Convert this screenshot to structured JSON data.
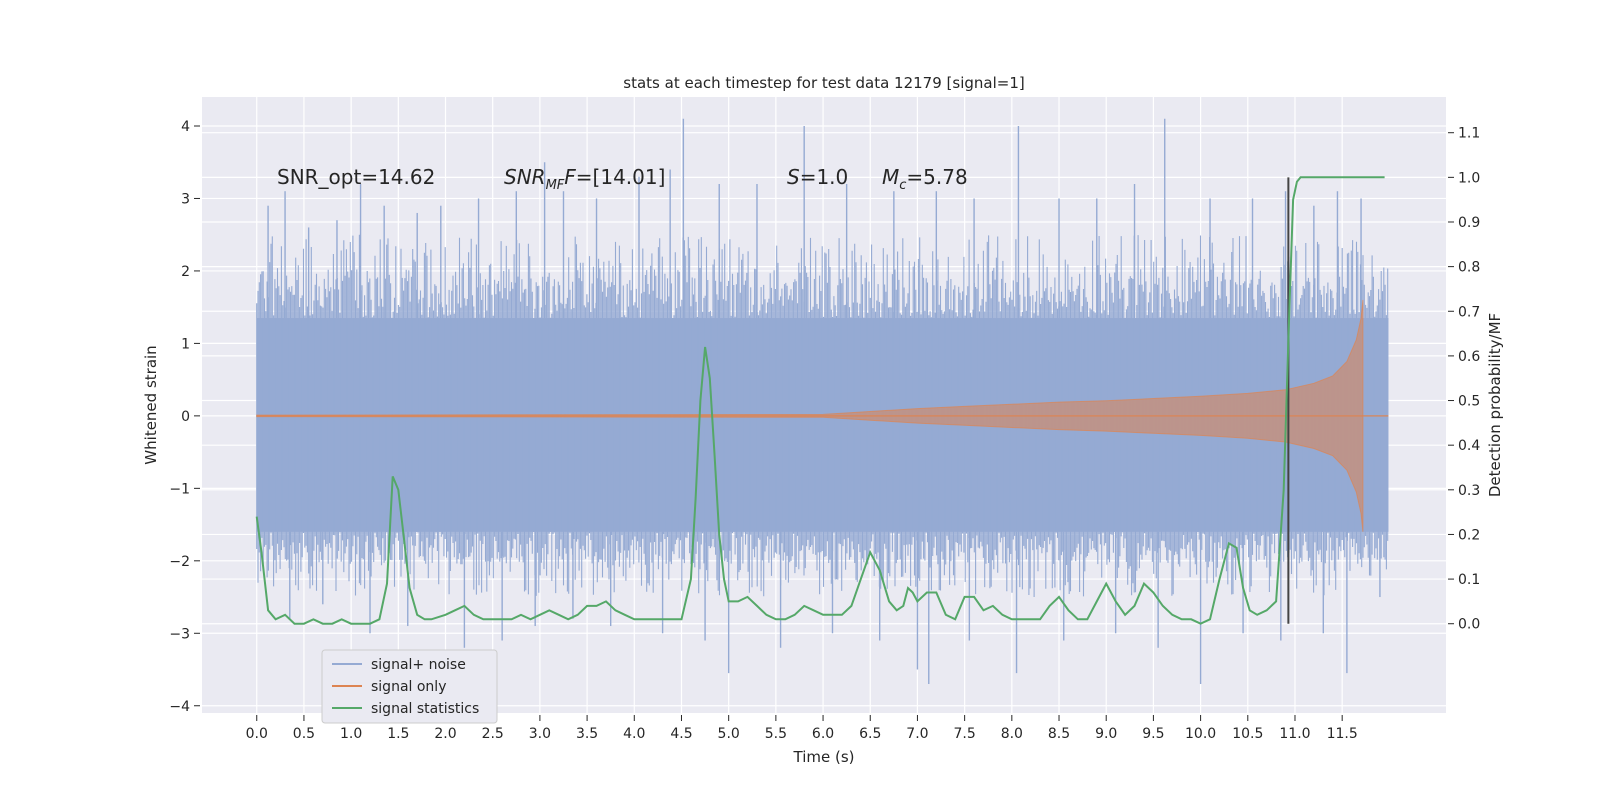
{
  "chart_data": {
    "type": "line",
    "title": "stats at each timestep for test data 12179 [signal=1]",
    "xlabel": "Time (s)",
    "ylabel": "Whitened strain",
    "ylabel_right": "Detection probability/MF",
    "xlim": [
      -0.58,
      12.6
    ],
    "ylim": [
      -4.1,
      4.4
    ],
    "ylim_right": [
      -0.2,
      1.18
    ],
    "x_ticks": [
      0.0,
      0.5,
      1.0,
      1.5,
      2.0,
      2.5,
      3.0,
      3.5,
      4.0,
      4.5,
      5.0,
      5.5,
      6.0,
      6.5,
      7.0,
      7.5,
      8.0,
      8.5,
      9.0,
      9.5,
      10.0,
      10.5,
      11.0,
      11.5
    ],
    "x_tick_labels": [
      "0.0",
      "0.5",
      "1.0",
      "1.5",
      "2.0",
      "2.5",
      "3.0",
      "3.5",
      "4.0",
      "4.5",
      "5.0",
      "5.5",
      "6.0",
      "6.5",
      "7.0",
      "7.5",
      "8.0",
      "8.5",
      "9.0",
      "9.5",
      "10.0",
      "10.5",
      "11.0",
      "11.5"
    ],
    "y_ticks": [
      4,
      3,
      2,
      1,
      0,
      -1,
      -2,
      -3,
      -4
    ],
    "y_tick_labels": [
      "4",
      "3",
      "2",
      "1",
      "0",
      "−1",
      "−2",
      "−3",
      "−4"
    ],
    "y_right_ticks": [
      1.1,
      1.0,
      0.9,
      0.8,
      0.7,
      0.6,
      0.5,
      0.4,
      0.3,
      0.2,
      0.1,
      0.0
    ],
    "y_right_tick_labels": [
      "1.1",
      "1.0",
      "0.9",
      "0.8",
      "0.7",
      "0.6",
      "0.5",
      "0.4",
      "0.3",
      "0.2",
      "0.1",
      "0.0"
    ],
    "grid": true,
    "legend_position": "lower-left",
    "annotations": {
      "snr_opt": "SNR_opt=14.62",
      "snr_mf_var": "SNR",
      "snr_mf_sub": "MF",
      "snr_mf_val": "=[14.01]",
      "s_var": "S",
      "s_val": "=1.0",
      "mc_var": "M",
      "mc_sub": "c",
      "mc_val": "=5.78"
    },
    "vertical_marker_x": 10.93,
    "colors": {
      "background": "#eaeaf2",
      "grid": "#ffffff",
      "noise": "#95aad3",
      "signal": "#dd8452",
      "stats": "#55a868",
      "marker": "#444444"
    },
    "series": [
      {
        "name": "signal+ noise",
        "x_range": [
          0.0,
          11.99
        ],
        "band_envelope": {
          "x": [
            0.0,
            11.99
          ],
          "lower_typical": [
            -1.6,
            -1.6
          ],
          "upper_typical": [
            1.35,
            1.35
          ],
          "lower_extreme": [
            -2.5,
            -2.5
          ],
          "upper_extreme": [
            2.5,
            2.5
          ]
        },
        "spikes": [
          {
            "x": 0.12,
            "y": 2.9
          },
          {
            "x": 0.3,
            "y": 3.1
          },
          {
            "x": 0.55,
            "y": 2.6
          },
          {
            "x": 0.85,
            "y": 2.7
          },
          {
            "x": 1.1,
            "y": 3.2
          },
          {
            "x": 1.35,
            "y": 2.9
          },
          {
            "x": 1.7,
            "y": 2.8
          },
          {
            "x": 1.95,
            "y": 2.9
          },
          {
            "x": 2.35,
            "y": 3.0
          },
          {
            "x": 2.75,
            "y": 3.1
          },
          {
            "x": 3.05,
            "y": 3.5
          },
          {
            "x": 3.25,
            "y": 3.1
          },
          {
            "x": 3.6,
            "y": 3.0
          },
          {
            "x": 4.05,
            "y": 3.3
          },
          {
            "x": 4.38,
            "y": 3.4
          },
          {
            "x": 4.52,
            "y": 4.1
          },
          {
            "x": 4.9,
            "y": 3.2
          },
          {
            "x": 5.3,
            "y": 3.2
          },
          {
            "x": 5.8,
            "y": 4.0
          },
          {
            "x": 6.25,
            "y": 3.2
          },
          {
            "x": 6.75,
            "y": 3.1
          },
          {
            "x": 7.2,
            "y": 3.1
          },
          {
            "x": 7.6,
            "y": 3.0
          },
          {
            "x": 8.07,
            "y": 4.0
          },
          {
            "x": 8.5,
            "y": 3.0
          },
          {
            "x": 8.9,
            "y": 3.0
          },
          {
            "x": 9.3,
            "y": 3.2
          },
          {
            "x": 9.62,
            "y": 4.1
          },
          {
            "x": 10.1,
            "y": 3.0
          },
          {
            "x": 10.55,
            "y": 3.0
          },
          {
            "x": 10.9,
            "y": 3.1
          },
          {
            "x": 11.2,
            "y": 2.9
          },
          {
            "x": 11.45,
            "y": 3.1
          },
          {
            "x": 11.7,
            "y": 3.0
          },
          {
            "x": 0.35,
            "y": -2.8
          },
          {
            "x": 0.7,
            "y": -2.6
          },
          {
            "x": 1.2,
            "y": -3.0
          },
          {
            "x": 1.6,
            "y": -2.9
          },
          {
            "x": 2.2,
            "y": -3.2
          },
          {
            "x": 2.6,
            "y": -3.1
          },
          {
            "x": 2.95,
            "y": -2.9
          },
          {
            "x": 3.35,
            "y": -2.8
          },
          {
            "x": 3.75,
            "y": -2.9
          },
          {
            "x": 4.3,
            "y": -3.0
          },
          {
            "x": 4.75,
            "y": -3.1
          },
          {
            "x": 5.0,
            "y": -3.55
          },
          {
            "x": 5.55,
            "y": -3.2
          },
          {
            "x": 6.1,
            "y": -3.0
          },
          {
            "x": 6.6,
            "y": -3.1
          },
          {
            "x": 7.0,
            "y": -3.5
          },
          {
            "x": 7.12,
            "y": -3.7
          },
          {
            "x": 7.55,
            "y": -3.1
          },
          {
            "x": 8.05,
            "y": -3.55
          },
          {
            "x": 8.55,
            "y": -3.1
          },
          {
            "x": 9.1,
            "y": -3.0
          },
          {
            "x": 9.55,
            "y": -3.2
          },
          {
            "x": 10.0,
            "y": -3.7
          },
          {
            "x": 10.45,
            "y": -3.0
          },
          {
            "x": 10.85,
            "y": -3.1
          },
          {
            "x": 11.3,
            "y": -3.0
          },
          {
            "x": 11.55,
            "y": -3.55
          },
          {
            "x": 11.9,
            "y": -2.5
          }
        ]
      },
      {
        "name": "signal only",
        "x": [
          0.0,
          6.0,
          6.5,
          7.0,
          7.5,
          8.0,
          8.5,
          9.0,
          9.5,
          10.0,
          10.5,
          10.9,
          11.2,
          11.4,
          11.55,
          11.65,
          11.7,
          11.72
        ],
        "amplitude": [
          0.01,
          0.02,
          0.06,
          0.1,
          0.13,
          0.16,
          0.19,
          0.21,
          0.24,
          0.27,
          0.31,
          0.36,
          0.45,
          0.55,
          0.75,
          1.05,
          1.35,
          1.6
        ],
        "x_after": [
          11.72,
          11.99
        ],
        "y_after": 0.0
      },
      {
        "name": "signal statistics",
        "axis": "right",
        "x": [
          0.0,
          0.05,
          0.12,
          0.2,
          0.3,
          0.4,
          0.5,
          0.6,
          0.7,
          0.8,
          0.9,
          1.0,
          1.1,
          1.2,
          1.3,
          1.38,
          1.44,
          1.5,
          1.56,
          1.62,
          1.7,
          1.78,
          1.85,
          2.0,
          2.1,
          2.2,
          2.3,
          2.4,
          2.5,
          2.6,
          2.7,
          2.8,
          2.9,
          3.0,
          3.1,
          3.2,
          3.3,
          3.4,
          3.5,
          3.6,
          3.7,
          3.8,
          3.9,
          4.0,
          4.1,
          4.2,
          4.3,
          4.4,
          4.5,
          4.6,
          4.65,
          4.7,
          4.75,
          4.8,
          4.85,
          4.9,
          4.95,
          5.0,
          5.1,
          5.2,
          5.3,
          5.4,
          5.5,
          5.6,
          5.7,
          5.8,
          5.9,
          6.0,
          6.1,
          6.2,
          6.3,
          6.4,
          6.5,
          6.6,
          6.7,
          6.78,
          6.85,
          6.9,
          6.95,
          7.0,
          7.1,
          7.2,
          7.3,
          7.4,
          7.5,
          7.6,
          7.7,
          7.8,
          7.9,
          8.0,
          8.1,
          8.2,
          8.3,
          8.4,
          8.5,
          8.6,
          8.7,
          8.8,
          8.9,
          9.0,
          9.1,
          9.2,
          9.3,
          9.4,
          9.5,
          9.6,
          9.7,
          9.8,
          9.9,
          10.0,
          10.1,
          10.2,
          10.3,
          10.38,
          10.45,
          10.52,
          10.6,
          10.7,
          10.8,
          10.88,
          10.94,
          10.98,
          11.02,
          11.06,
          11.1,
          11.2,
          11.4,
          11.6,
          11.8,
          11.95
        ],
        "y": [
          0.24,
          0.16,
          0.03,
          0.01,
          0.02,
          0.0,
          0.0,
          0.01,
          0.0,
          0.0,
          0.01,
          0.0,
          0.0,
          0.0,
          0.01,
          0.09,
          0.33,
          0.3,
          0.19,
          0.08,
          0.02,
          0.01,
          0.01,
          0.02,
          0.03,
          0.04,
          0.02,
          0.01,
          0.01,
          0.01,
          0.01,
          0.02,
          0.01,
          0.02,
          0.03,
          0.02,
          0.01,
          0.02,
          0.04,
          0.04,
          0.05,
          0.03,
          0.02,
          0.01,
          0.01,
          0.01,
          0.01,
          0.01,
          0.01,
          0.1,
          0.28,
          0.5,
          0.62,
          0.55,
          0.38,
          0.2,
          0.1,
          0.05,
          0.05,
          0.06,
          0.04,
          0.02,
          0.01,
          0.01,
          0.02,
          0.04,
          0.03,
          0.02,
          0.02,
          0.02,
          0.04,
          0.1,
          0.16,
          0.12,
          0.05,
          0.03,
          0.04,
          0.08,
          0.07,
          0.05,
          0.07,
          0.07,
          0.02,
          0.01,
          0.06,
          0.06,
          0.03,
          0.04,
          0.02,
          0.01,
          0.01,
          0.01,
          0.01,
          0.04,
          0.06,
          0.03,
          0.01,
          0.01,
          0.05,
          0.09,
          0.05,
          0.02,
          0.04,
          0.09,
          0.07,
          0.04,
          0.02,
          0.01,
          0.01,
          0.0,
          0.01,
          0.1,
          0.18,
          0.17,
          0.08,
          0.03,
          0.02,
          0.03,
          0.05,
          0.3,
          0.7,
          0.95,
          0.99,
          1.0,
          1.0,
          1.0,
          1.0,
          1.0,
          1.0,
          1.0
        ]
      }
    ]
  }
}
